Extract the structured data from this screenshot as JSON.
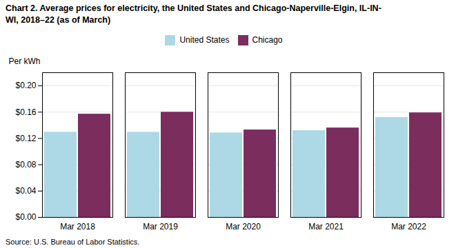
{
  "chart_data": {
    "type": "bar",
    "title": "Chart 2. Average prices for electricity, the United States and Chicago-Naperville-Elgin, IL-IN-\nWI, 2018–22 (as of March)",
    "ylabel": "Per kWh",
    "source": "Source: U.S. Bureau of Labor Statistics.",
    "categories": [
      "Mar 2018",
      "Mar 2019",
      "Mar 2020",
      "Mar 2021",
      "Mar 2022"
    ],
    "series": [
      {
        "name": "United States",
        "color": "#ADD8E6",
        "values": [
          0.1295,
          0.1295,
          0.1285,
          0.132,
          0.152
        ]
      },
      {
        "name": "Chicago",
        "color": "#7B2D5E",
        "values": [
          0.157,
          0.16,
          0.133,
          0.136,
          0.159
        ]
      }
    ],
    "ylim": [
      0,
      0.22
    ],
    "yticks": [
      {
        "value": 0.0,
        "label": "$0.00"
      },
      {
        "value": 0.04,
        "label": "$0.04"
      },
      {
        "value": 0.08,
        "label": "$0.08"
      },
      {
        "value": 0.12,
        "label": "$0.12"
      },
      {
        "value": 0.16,
        "label": "$0.16"
      },
      {
        "value": 0.2,
        "label": "$0.20"
      }
    ],
    "grid": true,
    "legend": "top"
  }
}
